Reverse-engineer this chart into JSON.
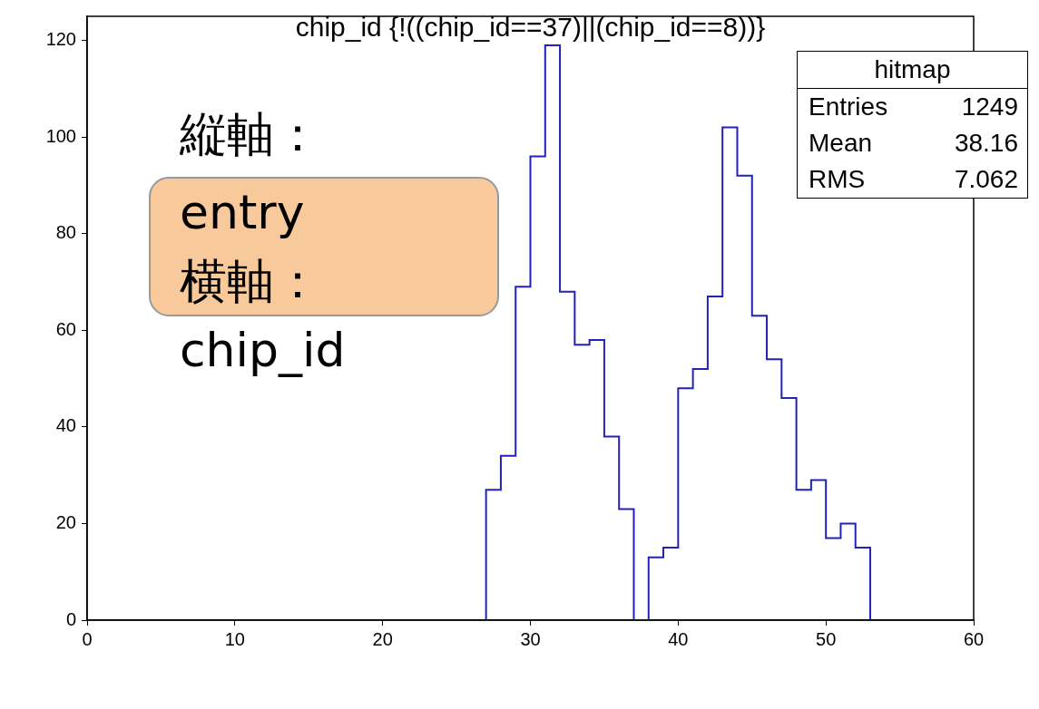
{
  "chart_data": {
    "type": "histogram",
    "title": "chip_id {!((chip_id==37)||(chip_id==8))}",
    "bins": [
      27,
      28,
      29,
      30,
      31,
      32,
      33,
      34,
      35,
      36,
      37,
      38,
      39,
      40,
      41,
      42,
      43,
      44,
      45,
      46,
      47,
      48,
      49,
      50,
      51,
      52,
      53
    ],
    "values": [
      27,
      34,
      69,
      96,
      119,
      68,
      57,
      58,
      38,
      23,
      0,
      13,
      15,
      48,
      52,
      67,
      102,
      92,
      63,
      54,
      46,
      27,
      29,
      17,
      20,
      15
    ],
    "color": "#2222bb",
    "xlim": [
      0,
      60
    ],
    "xticks": [
      0,
      10,
      20,
      30,
      40,
      50,
      60
    ],
    "ylim": [
      0,
      125
    ],
    "yticks": [
      0,
      20,
      40,
      60,
      80,
      100,
      120
    ],
    "grid": false,
    "legend": false,
    "annotations": [
      "縦軸：",
      "entry",
      "横軸：",
      "chip_id",
      "hitmap",
      "Entries",
      "1249",
      "Mean",
      "38.16",
      "RMS",
      "7.062"
    ]
  }
}
